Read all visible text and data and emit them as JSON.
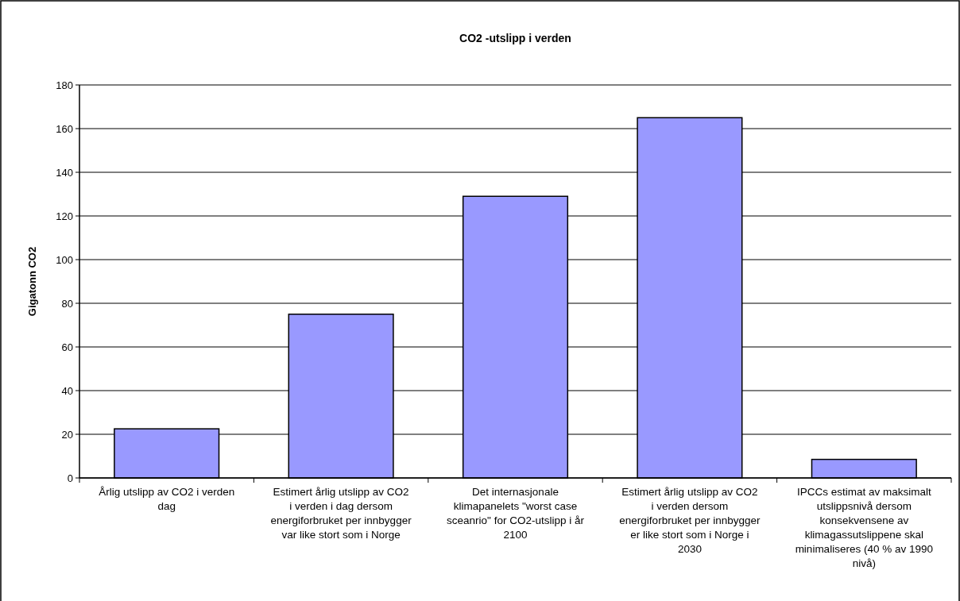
{
  "chart_data": {
    "type": "bar",
    "title": "CO2 -utslipp i verden",
    "ylabel": "Gigatonn CO2",
    "categories": [
      "Årlig utslipp av CO2 i verden dag",
      "Estimert årlig utslipp av CO2 i verden i dag dersom energiforbruket per innbygger var like stort som i Norge",
      "Det internasjonale klimapanelets \"worst case sceanrio\" for CO2-utslipp i år 2100",
      "Estimert årlig utslipp av CO2 i verden dersom energiforbruket per innbygger er like stort som i Norge i 2030",
      "IPCCs estimat av maksimalt utslippsnivå dersom konsekvensene av klimagassutslippene skal minimaliseres (40 % av 1990 nivå)"
    ],
    "values": [
      22.5,
      75,
      129,
      165,
      8.5
    ],
    "color": "#9999ff",
    "ylim": [
      0,
      180
    ],
    "yticks": [
      0,
      20,
      40,
      60,
      80,
      100,
      120,
      140,
      160,
      180
    ],
    "grid": "y"
  }
}
